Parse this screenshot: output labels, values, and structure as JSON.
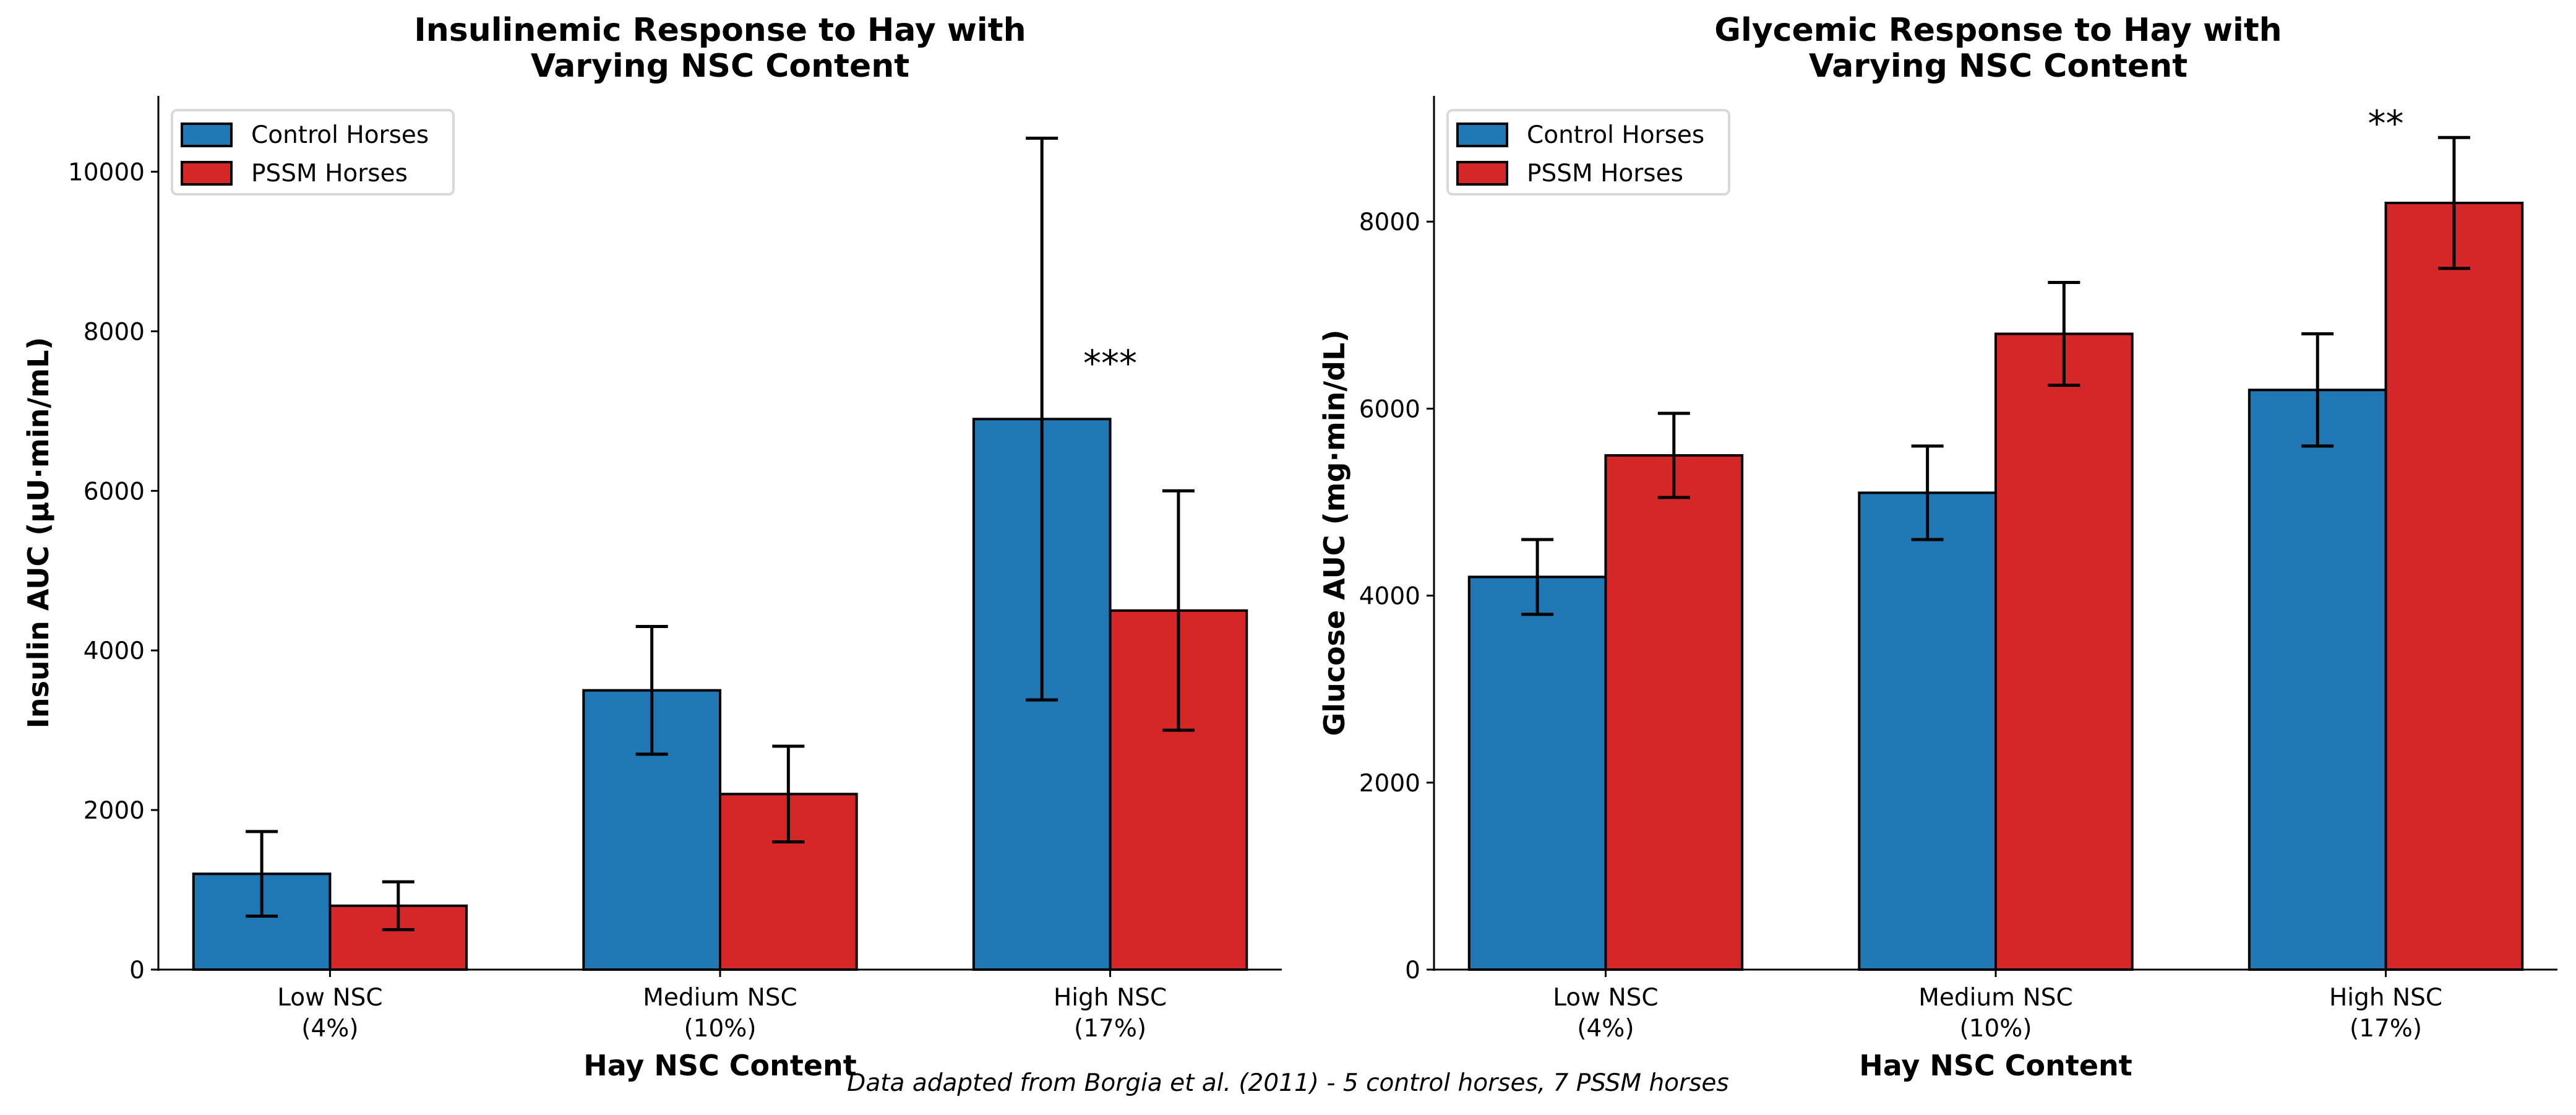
{
  "footnote": "Data adapted from Borgia et al. (2011) - 5 control horses, 7 PSSM horses",
  "colors": {
    "control": "#1f77b4",
    "pssm": "#d62728",
    "edge": "#000000",
    "legend_border": "#d9d9d9"
  },
  "chart_data": [
    {
      "type": "bar",
      "title_lines": [
        "Insulinemic Response to Hay with",
        "Varying NSC Content"
      ],
      "xlabel": "Hay NSC Content",
      "ylabel": "Insulin AUC (µU·min/mL)",
      "categories": [
        [
          "Low NSC",
          "(4%)"
        ],
        [
          "Medium NSC",
          "(10%)"
        ],
        [
          "High NSC",
          "(17%)"
        ]
      ],
      "ylim": [
        0,
        10950
      ],
      "yticks": [
        0,
        2000,
        4000,
        6000,
        8000,
        10000
      ],
      "legend": {
        "placement": "top-left",
        "entries": [
          "Control Horses",
          "PSSM Horses"
        ]
      },
      "grid": false,
      "series": [
        {
          "name": "Control Horses",
          "color_key": "control",
          "values": [
            1200,
            3500,
            6900
          ],
          "errors": [
            530,
            800,
            3520
          ]
        },
        {
          "name": "PSSM Horses",
          "color_key": "pssm",
          "values": [
            800,
            2200,
            4500
          ],
          "errors": [
            300,
            600,
            1500
          ]
        }
      ],
      "annotations": [
        {
          "text": "***",
          "category_index": 2,
          "y": 7600
        }
      ]
    },
    {
      "type": "bar",
      "title_lines": [
        "Glycemic Response to Hay with",
        "Varying NSC Content"
      ],
      "xlabel": "Hay NSC Content",
      "ylabel": "Glucose AUC (mg·min/dL)",
      "categories": [
        [
          "Low NSC",
          "(4%)"
        ],
        [
          "Medium NSC",
          "(10%)"
        ],
        [
          "High NSC",
          "(17%)"
        ]
      ],
      "ylim": [
        0,
        9345
      ],
      "yticks": [
        0,
        2000,
        4000,
        6000,
        8000
      ],
      "legend": {
        "placement": "top-left",
        "entries": [
          "Control Horses",
          "PSSM Horses"
        ]
      },
      "grid": false,
      "series": [
        {
          "name": "Control Horses",
          "color_key": "control",
          "values": [
            4200,
            5100,
            6200
          ],
          "errors": [
            400,
            500,
            600
          ]
        },
        {
          "name": "PSSM Horses",
          "color_key": "pssm",
          "values": [
            5500,
            6800,
            8200
          ],
          "errors": [
            450,
            550,
            700
          ]
        }
      ],
      "annotations": [
        {
          "text": "**",
          "category_index": 2,
          "y": 9050
        }
      ]
    }
  ]
}
